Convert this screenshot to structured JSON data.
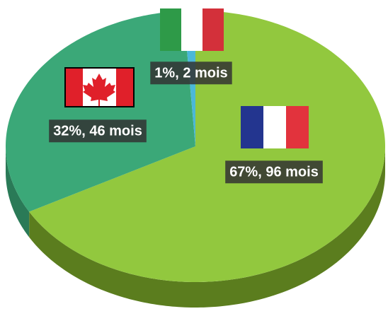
{
  "chart_data": {
    "type": "pie",
    "values": [
      67,
      32,
      1
    ],
    "value_labels": [
      "67%, 96 mois",
      "32%, 46 mois",
      "1%, 2 mois"
    ],
    "colors": [
      "#92c83e",
      "#3ba878",
      "#4bb8d8"
    ],
    "side_colors": [
      "#5b7d1e",
      "#2a7a57",
      "#2f8aa5"
    ]
  }
}
